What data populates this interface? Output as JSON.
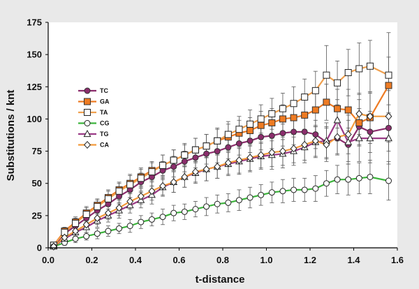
{
  "chart_data": {
    "type": "line",
    "title": "",
    "xlabel": "t-distance",
    "ylabel": "Substitutions / knt",
    "xlim": [
      0,
      1.6
    ],
    "ylim": [
      0,
      175
    ],
    "xticks": [
      "0.0",
      "0.2",
      "0.4",
      "0.6",
      "0.8",
      "1.0",
      "1.2",
      "1.4",
      "1.6"
    ],
    "yticks": [
      "0",
      "25",
      "50",
      "75",
      "100",
      "125",
      "150",
      "175"
    ],
    "grid": false,
    "legend_position": "upper-left",
    "colors": {
      "background": "#e9e9e9",
      "plot_background": "#ffffff",
      "TC": "#8b2d6c",
      "GA": "#ee7b23",
      "TA": "#f0a04e",
      "CG": "#3cb43c",
      "TG": "#9a3a86",
      "CA": "#f29a3c"
    },
    "series": [
      {
        "name": "TC",
        "marker": "circle-filled",
        "x": [
          0.025,
          0.075,
          0.125,
          0.175,
          0.225,
          0.275,
          0.325,
          0.375,
          0.425,
          0.475,
          0.525,
          0.575,
          0.625,
          0.675,
          0.725,
          0.775,
          0.825,
          0.875,
          0.925,
          0.975,
          1.025,
          1.075,
          1.125,
          1.175,
          1.225,
          1.275,
          1.325,
          1.375,
          1.425,
          1.475,
          1.56
        ],
        "y": [
          1,
          11,
          17,
          23,
          29,
          34,
          40,
          45,
          51,
          55,
          60,
          63,
          67,
          70,
          73,
          75,
          78,
          81,
          83,
          86,
          87,
          89,
          90,
          90,
          88,
          82,
          85,
          80,
          94,
          90,
          93
        ],
        "err": [
          1,
          3,
          4,
          5,
          5,
          6,
          6,
          6,
          7,
          7,
          7,
          8,
          8,
          8,
          8,
          9,
          9,
          9,
          9,
          10,
          10,
          10,
          10,
          11,
          11,
          12,
          12,
          13,
          14,
          16,
          18
        ]
      },
      {
        "name": "GA",
        "marker": "square-filled",
        "x": [
          0.025,
          0.075,
          0.125,
          0.175,
          0.225,
          0.275,
          0.325,
          0.375,
          0.425,
          0.475,
          0.525,
          0.575,
          0.625,
          0.675,
          0.725,
          0.775,
          0.825,
          0.875,
          0.925,
          0.975,
          1.025,
          1.075,
          1.125,
          1.175,
          1.225,
          1.275,
          1.325,
          1.375,
          1.425,
          1.475,
          1.56
        ],
        "y": [
          2,
          13,
          20,
          27,
          33,
          39,
          45,
          50,
          55,
          60,
          64,
          68,
          72,
          76,
          79,
          83,
          86,
          89,
          91,
          95,
          97,
          100,
          101,
          103,
          107,
          113,
          108,
          107,
          97,
          101,
          126
        ],
        "err": [
          1,
          3,
          4,
          5,
          5,
          6,
          6,
          7,
          7,
          7,
          8,
          8,
          8,
          9,
          9,
          9,
          10,
          10,
          10,
          11,
          11,
          11,
          12,
          12,
          13,
          14,
          15,
          16,
          18,
          20,
          22
        ]
      },
      {
        "name": "TA",
        "marker": "square-open",
        "x": [
          0.025,
          0.075,
          0.125,
          0.175,
          0.225,
          0.275,
          0.325,
          0.375,
          0.425,
          0.475,
          0.525,
          0.575,
          0.625,
          0.675,
          0.725,
          0.775,
          0.825,
          0.875,
          0.925,
          0.975,
          1.025,
          1.075,
          1.125,
          1.175,
          1.225,
          1.275,
          1.325,
          1.375,
          1.425,
          1.475,
          1.56
        ],
        "y": [
          2,
          12,
          19,
          26,
          32,
          38,
          44,
          49,
          54,
          59,
          64,
          68,
          72,
          76,
          79,
          83,
          88,
          92,
          96,
          100,
          104,
          108,
          112,
          117,
          122,
          134,
          128,
          136,
          139,
          141,
          134
        ],
        "err": [
          1,
          3,
          4,
          5,
          5,
          6,
          6,
          7,
          7,
          7,
          8,
          8,
          9,
          9,
          9,
          10,
          10,
          10,
          11,
          11,
          12,
          12,
          13,
          14,
          15,
          23,
          17,
          18,
          20,
          20,
          33
        ]
      },
      {
        "name": "CG",
        "marker": "circle-open",
        "x": [
          0.025,
          0.075,
          0.125,
          0.175,
          0.225,
          0.275,
          0.325,
          0.375,
          0.425,
          0.475,
          0.525,
          0.575,
          0.625,
          0.675,
          0.725,
          0.775,
          0.825,
          0.875,
          0.925,
          0.975,
          1.025,
          1.075,
          1.125,
          1.175,
          1.225,
          1.275,
          1.325,
          1.375,
          1.425,
          1.475,
          1.56
        ],
        "y": [
          1,
          4,
          7,
          9,
          11,
          13,
          15,
          17,
          20,
          22,
          24,
          27,
          28,
          30,
          32,
          34,
          35,
          37,
          39,
          41,
          43,
          44,
          45,
          45,
          46,
          50,
          53,
          53,
          54,
          55,
          52
        ],
        "err": [
          1,
          2,
          3,
          3,
          4,
          4,
          4,
          5,
          5,
          5,
          6,
          6,
          6,
          6,
          7,
          7,
          7,
          8,
          8,
          8,
          8,
          9,
          9,
          9,
          10,
          10,
          11,
          12,
          12,
          13,
          15
        ]
      },
      {
        "name": "TG",
        "marker": "triangle-open",
        "x": [
          0.025,
          0.075,
          0.125,
          0.175,
          0.225,
          0.275,
          0.325,
          0.375,
          0.425,
          0.475,
          0.525,
          0.575,
          0.625,
          0.675,
          0.725,
          0.775,
          0.825,
          0.875,
          0.925,
          0.975,
          1.025,
          1.075,
          1.125,
          1.175,
          1.225,
          1.275,
          1.325,
          1.375,
          1.425,
          1.475,
          1.56
        ],
        "y": [
          1,
          7,
          12,
          16,
          21,
          25,
          29,
          33,
          37,
          41,
          47,
          51,
          55,
          58,
          61,
          63,
          65,
          67,
          69,
          71,
          72,
          73,
          75,
          78,
          82,
          83,
          99,
          82,
          85,
          85,
          85
        ],
        "err": [
          1,
          3,
          4,
          4,
          5,
          5,
          6,
          6,
          6,
          7,
          7,
          8,
          8,
          8,
          9,
          9,
          9,
          10,
          10,
          10,
          11,
          11,
          11,
          12,
          12,
          14,
          16,
          17,
          18,
          19,
          20
        ]
      },
      {
        "name": "CA",
        "marker": "diamond-open",
        "x": [
          0.025,
          0.075,
          0.125,
          0.175,
          0.225,
          0.275,
          0.325,
          0.375,
          0.425,
          0.475,
          0.525,
          0.575,
          0.625,
          0.675,
          0.725,
          0.775,
          0.825,
          0.875,
          0.925,
          0.975,
          1.025,
          1.075,
          1.125,
          1.175,
          1.225,
          1.275,
          1.325,
          1.375,
          1.425,
          1.475,
          1.56
        ],
        "y": [
          1,
          8,
          13,
          18,
          23,
          27,
          31,
          36,
          40,
          44,
          48,
          51,
          55,
          59,
          61,
          63,
          66,
          68,
          70,
          72,
          74,
          75,
          77,
          80,
          83,
          80,
          86,
          88,
          104,
          102,
          102
        ],
        "err": [
          1,
          3,
          4,
          4,
          5,
          5,
          6,
          6,
          6,
          7,
          7,
          8,
          8,
          8,
          9,
          9,
          9,
          10,
          10,
          10,
          11,
          11,
          11,
          12,
          12,
          13,
          14,
          15,
          16,
          18,
          20
        ]
      }
    ]
  }
}
